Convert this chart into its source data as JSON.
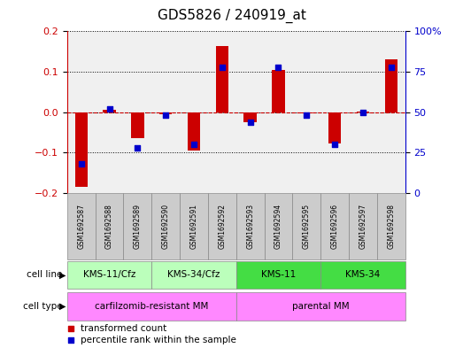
{
  "title": "GDS5826 / 240919_at",
  "samples": [
    "GSM1692587",
    "GSM1692588",
    "GSM1692589",
    "GSM1692590",
    "GSM1692591",
    "GSM1692592",
    "GSM1692593",
    "GSM1692594",
    "GSM1692595",
    "GSM1692596",
    "GSM1692597",
    "GSM1692598"
  ],
  "transformed_count": [
    -0.185,
    0.005,
    -0.065,
    -0.005,
    -0.095,
    0.163,
    -0.025,
    0.105,
    -0.002,
    -0.078,
    0.002,
    0.13
  ],
  "percentile_rank": [
    18,
    52,
    28,
    48,
    30,
    78,
    44,
    78,
    48,
    30,
    50,
    78
  ],
  "cell_line_groups": [
    {
      "label": "KMS-11/Cfz",
      "start": 0,
      "end": 2,
      "color": "#BBFFBB"
    },
    {
      "label": "KMS-34/Cfz",
      "start": 3,
      "end": 5,
      "color": "#BBFFBB"
    },
    {
      "label": "KMS-11",
      "start": 6,
      "end": 8,
      "color": "#44DD44"
    },
    {
      "label": "KMS-34",
      "start": 9,
      "end": 11,
      "color": "#44DD44"
    }
  ],
  "cell_type_groups": [
    {
      "label": "carfilzomib-resistant MM",
      "start": 0,
      "end": 5,
      "color": "#FF88FF"
    },
    {
      "label": "parental MM",
      "start": 6,
      "end": 11,
      "color": "#FF88FF"
    }
  ],
  "bar_color": "#CC0000",
  "dot_color": "#0000CC",
  "left_ylim": [
    -0.2,
    0.2
  ],
  "right_ylim": [
    0,
    100
  ],
  "left_yticks": [
    -0.2,
    -0.1,
    0.0,
    0.1,
    0.2
  ],
  "right_yticks": [
    0,
    25,
    50,
    75,
    100
  ],
  "right_yticklabels": [
    "0",
    "25",
    "50",
    "75",
    "100%"
  ],
  "bg_color": "#FFFFFF",
  "plot_bg": "#F0F0F0",
  "title_fontsize": 11,
  "tick_fontsize": 8,
  "sample_fontsize": 5.5,
  "group_fontsize": 7.5,
  "legend_fontsize": 7.5,
  "bar_width": 0.45,
  "dot_size": 18
}
